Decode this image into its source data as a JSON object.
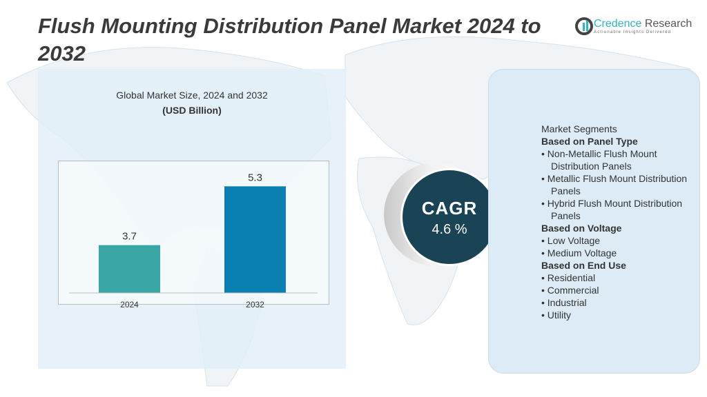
{
  "title": "Flush Mounting Distribution Panel Market 2024 to 2032",
  "logo": {
    "name_a": "Credence",
    "name_b": " Research",
    "tagline": "Actionable Insights Delivered"
  },
  "chart_data": {
    "type": "bar",
    "title": "Global Market Size, 2024 and 2032",
    "subtitle": "(USD Billion)",
    "categories": [
      "2024",
      "2032"
    ],
    "values": [
      3.7,
      5.3
    ],
    "data_labels": [
      "3.7",
      "5.3"
    ],
    "colors": [
      "#3aa5a5",
      "#0a80b2"
    ],
    "ylim": [
      2.4,
      6.0
    ],
    "grid": false
  },
  "cagr": {
    "label": "CAGR",
    "value": "4.6 %",
    "color": "#1b4356"
  },
  "segments": {
    "heading": "Market Segments",
    "groups": [
      {
        "title": "Based on Panel Type",
        "items": [
          "Non-Metallic Flush Mount Distribution Panels",
          "Metallic Flush Mount Distribution Panels",
          "Hybrid Flush Mount Distribution Panels"
        ]
      },
      {
        "title": "Based on Voltage",
        "items": [
          "Low Voltage",
          "Medium Voltage"
        ]
      },
      {
        "title": "Based on End Use",
        "items": [
          "Residential",
          "Commercial",
          "Industrial",
          "Utility"
        ]
      }
    ]
  }
}
